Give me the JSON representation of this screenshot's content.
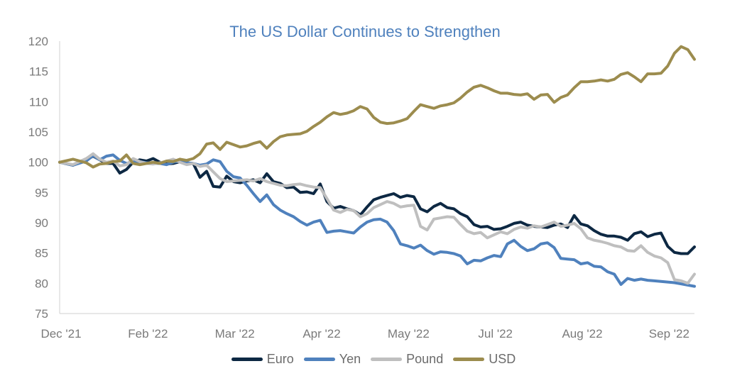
{
  "chart_data": {
    "type": "line",
    "title": "The US Dollar Continues to Strengthen",
    "xlabel": "",
    "ylabel": "",
    "ylim": [
      75,
      120
    ],
    "yticks": [
      75,
      80,
      85,
      90,
      95,
      100,
      105,
      110,
      115,
      120
    ],
    "xlim": [
      0,
      190
    ],
    "xticks": [
      {
        "label": "Dec '21",
        "x": 0
      },
      {
        "label": "Feb '22",
        "x": 26
      },
      {
        "label": "Mar '22",
        "x": 52
      },
      {
        "label": "Apr '22",
        "x": 78
      },
      {
        "label": "May '22",
        "x": 104
      },
      {
        "label": "Jul '22",
        "x": 130
      },
      {
        "label": "Aug '22",
        "x": 156
      },
      {
        "label": "Sep '22",
        "x": 182
      }
    ],
    "grid": false,
    "legend_position": "bottom",
    "series": [
      {
        "name": "Euro",
        "color": "#0d2843",
        "x": [
          0,
          4,
          8,
          10,
          12,
          14,
          16,
          18,
          20,
          22,
          24,
          26,
          28,
          30,
          32,
          34,
          36,
          38,
          40,
          42,
          44,
          46,
          48,
          50,
          52,
          54,
          56,
          58,
          60,
          62,
          64,
          66,
          68,
          70,
          72,
          74,
          76,
          78,
          80,
          82,
          84,
          86,
          88,
          90,
          92,
          94,
          96,
          98,
          100,
          102,
          104,
          106,
          108,
          110,
          112,
          114,
          116,
          118,
          120,
          122,
          124,
          126,
          128,
          130,
          132,
          134,
          136,
          138,
          140,
          142,
          144,
          146,
          148,
          150,
          152,
          154,
          156,
          158,
          160,
          162,
          164,
          166,
          168,
          170,
          172,
          174,
          176,
          178,
          180,
          182,
          184,
          186,
          188,
          190
        ],
        "y": [
          100,
          99.5,
          100.4,
          101,
          100.4,
          99.8,
          99.8,
          98.2,
          98.8,
          100,
          100.4,
          100.2,
          100.6,
          100,
          99.7,
          99.8,
          100.1,
          99.9,
          99.8,
          97.5,
          98.5,
          96,
          95.9,
          97.7,
          96.8,
          96.6,
          96.9,
          97.1,
          96.6,
          98.1,
          96.8,
          96.5,
          95.8,
          95.9,
          95,
          95.1,
          94.8,
          96.4,
          93.5,
          92.4,
          92.7,
          92.3,
          92,
          91.3,
          92.6,
          93.8,
          94.2,
          94.5,
          94.8,
          94.2,
          94.5,
          94.3,
          92.3,
          91.8,
          92.7,
          93.2,
          92.5,
          92.3,
          91.5,
          91,
          89.7,
          89.3,
          89.4,
          88.9,
          89,
          89.4,
          89.9,
          90.1,
          89.6,
          89.4,
          89.3,
          89.2,
          89.6,
          89.8,
          89.2,
          91.2,
          89.8,
          89.5,
          88.7,
          88.1,
          87.8,
          87.8,
          87.6,
          87.1,
          88.2,
          88.5,
          87.7,
          88.1,
          88.3,
          86.1,
          85.1,
          84.9,
          84.9,
          86
        ]
      },
      {
        "name": "Yen",
        "color": "#4f81bd",
        "x": [
          0,
          4,
          8,
          10,
          12,
          14,
          16,
          18,
          20,
          22,
          24,
          26,
          28,
          30,
          32,
          34,
          36,
          38,
          40,
          42,
          44,
          46,
          48,
          50,
          52,
          54,
          56,
          58,
          60,
          62,
          64,
          66,
          68,
          70,
          72,
          74,
          76,
          78,
          80,
          82,
          84,
          86,
          88,
          90,
          92,
          94,
          96,
          98,
          100,
          102,
          104,
          106,
          108,
          110,
          112,
          114,
          116,
          118,
          120,
          122,
          124,
          126,
          128,
          130,
          132,
          134,
          136,
          138,
          140,
          142,
          144,
          146,
          148,
          150,
          152,
          154,
          156,
          158,
          160,
          162,
          164,
          166,
          168,
          170,
          172,
          174,
          176,
          178,
          180,
          182,
          184,
          186,
          188,
          190
        ],
        "y": [
          100,
          99.5,
          100.2,
          101.1,
          100.4,
          101,
          101.2,
          100.3,
          99.8,
          100,
          100.1,
          99.9,
          99.8,
          99.8,
          99.6,
          100,
          100.2,
          99.9,
          99.8,
          99.5,
          99.7,
          100.4,
          100.1,
          98.5,
          97.6,
          97.4,
          96.2,
          94.8,
          93.5,
          94.6,
          93,
          92.1,
          91.5,
          91,
          90.2,
          89.6,
          90.1,
          90.4,
          88.4,
          88.6,
          88.7,
          88.5,
          88.3,
          89.3,
          90.1,
          90.5,
          90.6,
          90.1,
          88.7,
          86.5,
          86.2,
          85.8,
          86.3,
          85.4,
          84.8,
          85.2,
          85.1,
          84.9,
          84.5,
          83.2,
          83.8,
          83.7,
          84.2,
          84.6,
          84.4,
          86.5,
          87.1,
          86.1,
          85.4,
          85.7,
          86.5,
          86.7,
          85.9,
          84.1,
          84,
          83.9,
          83.2,
          83.4,
          82.8,
          82.7,
          81.9,
          81.5,
          79.8,
          80.8,
          80.5,
          80.7,
          80.5,
          80.4,
          80.3,
          80.2,
          80.1,
          79.9,
          79.7,
          79.5
        ]
      },
      {
        "name": "Pound",
        "color": "#bfbfbf",
        "x": [
          0,
          4,
          8,
          10,
          12,
          14,
          16,
          18,
          20,
          22,
          24,
          26,
          28,
          30,
          32,
          34,
          36,
          38,
          40,
          42,
          44,
          46,
          48,
          50,
          52,
          54,
          56,
          58,
          60,
          62,
          64,
          66,
          68,
          70,
          72,
          74,
          76,
          78,
          80,
          82,
          84,
          86,
          88,
          90,
          92,
          94,
          96,
          98,
          100,
          102,
          104,
          106,
          108,
          110,
          112,
          114,
          116,
          118,
          120,
          122,
          124,
          126,
          128,
          130,
          132,
          134,
          136,
          138,
          140,
          142,
          144,
          146,
          148,
          150,
          152,
          154,
          156,
          158,
          160,
          162,
          164,
          166,
          168,
          170,
          172,
          174,
          176,
          178,
          180,
          182,
          184,
          186,
          188,
          190
        ],
        "y": [
          100,
          99.6,
          100.6,
          101.4,
          100.5,
          100,
          100.2,
          99.4,
          99.6,
          100.6,
          100.1,
          99.8,
          99.7,
          99.9,
          100.2,
          100.5,
          100,
          99.6,
          99.8,
          99.3,
          99.5,
          98.4,
          97.3,
          96.8,
          96.9,
          97,
          97.1,
          96.9,
          97.3,
          96.8,
          96.5,
          96.2,
          96.1,
          96.3,
          96.4,
          96.1,
          95.9,
          95.8,
          94,
          92.1,
          91.7,
          92.2,
          92,
          91,
          91.5,
          92.5,
          93,
          93.5,
          93.2,
          92.6,
          92.8,
          92.9,
          89.4,
          88.8,
          90.6,
          90.8,
          91,
          90.9,
          89.7,
          88.6,
          88.2,
          88.4,
          87.5,
          88,
          88.5,
          88.2,
          88.9,
          89.3,
          89.1,
          89.5,
          89.3,
          89.7,
          90.1,
          89.4,
          89.6,
          89.9,
          89,
          87.5,
          87.1,
          86.9,
          86.6,
          86.2,
          86,
          85.4,
          85.3,
          86.2,
          85.1,
          84.5,
          84.2,
          83.4,
          80.6,
          80.4,
          80,
          81.5
        ]
      },
      {
        "name": "USD",
        "color": "#9c8c4e",
        "x": [
          0,
          4,
          8,
          10,
          12,
          14,
          16,
          18,
          20,
          22,
          24,
          26,
          28,
          30,
          32,
          34,
          36,
          38,
          40,
          42,
          44,
          46,
          48,
          50,
          52,
          54,
          56,
          58,
          60,
          62,
          64,
          66,
          68,
          70,
          72,
          74,
          76,
          78,
          80,
          82,
          84,
          86,
          88,
          90,
          92,
          94,
          96,
          98,
          100,
          102,
          104,
          106,
          108,
          110,
          112,
          114,
          116,
          118,
          120,
          122,
          124,
          126,
          128,
          130,
          132,
          134,
          136,
          138,
          140,
          142,
          144,
          146,
          148,
          150,
          152,
          154,
          156,
          158,
          160,
          162,
          164,
          166,
          168,
          170,
          172,
          174,
          176,
          178,
          180,
          182,
          184,
          186,
          188,
          190
        ],
        "y": [
          100,
          100.5,
          99.9,
          99.2,
          99.7,
          99.8,
          100.1,
          100.2,
          101.2,
          99.8,
          99.6,
          99.8,
          100,
          99.8,
          100.2,
          100.1,
          100.5,
          100.3,
          100.6,
          101.4,
          103,
          103.2,
          102.1,
          103.3,
          102.9,
          102.5,
          102.7,
          103.1,
          103.4,
          102.3,
          103.4,
          104.2,
          104.5,
          104.6,
          104.7,
          105.1,
          105.9,
          106.6,
          107.5,
          108.2,
          107.9,
          108.1,
          108.5,
          109.2,
          108.8,
          107.4,
          106.6,
          106.4,
          106.5,
          106.8,
          107.2,
          108.4,
          109.5,
          109.2,
          108.9,
          109.3,
          109.5,
          109.8,
          110.6,
          111.6,
          112.4,
          112.7,
          112.3,
          111.8,
          111.4,
          111.4,
          111.2,
          111.1,
          111.3,
          110.4,
          111.1,
          111.2,
          109.9,
          110.7,
          111.1,
          112.3,
          113.3,
          113.3,
          113.4,
          113.6,
          113.4,
          113.7,
          114.5,
          114.8,
          114.1,
          113.3,
          114.6,
          114.6,
          114.7,
          115.9,
          118,
          119.1,
          118.6,
          117
        ]
      }
    ]
  }
}
